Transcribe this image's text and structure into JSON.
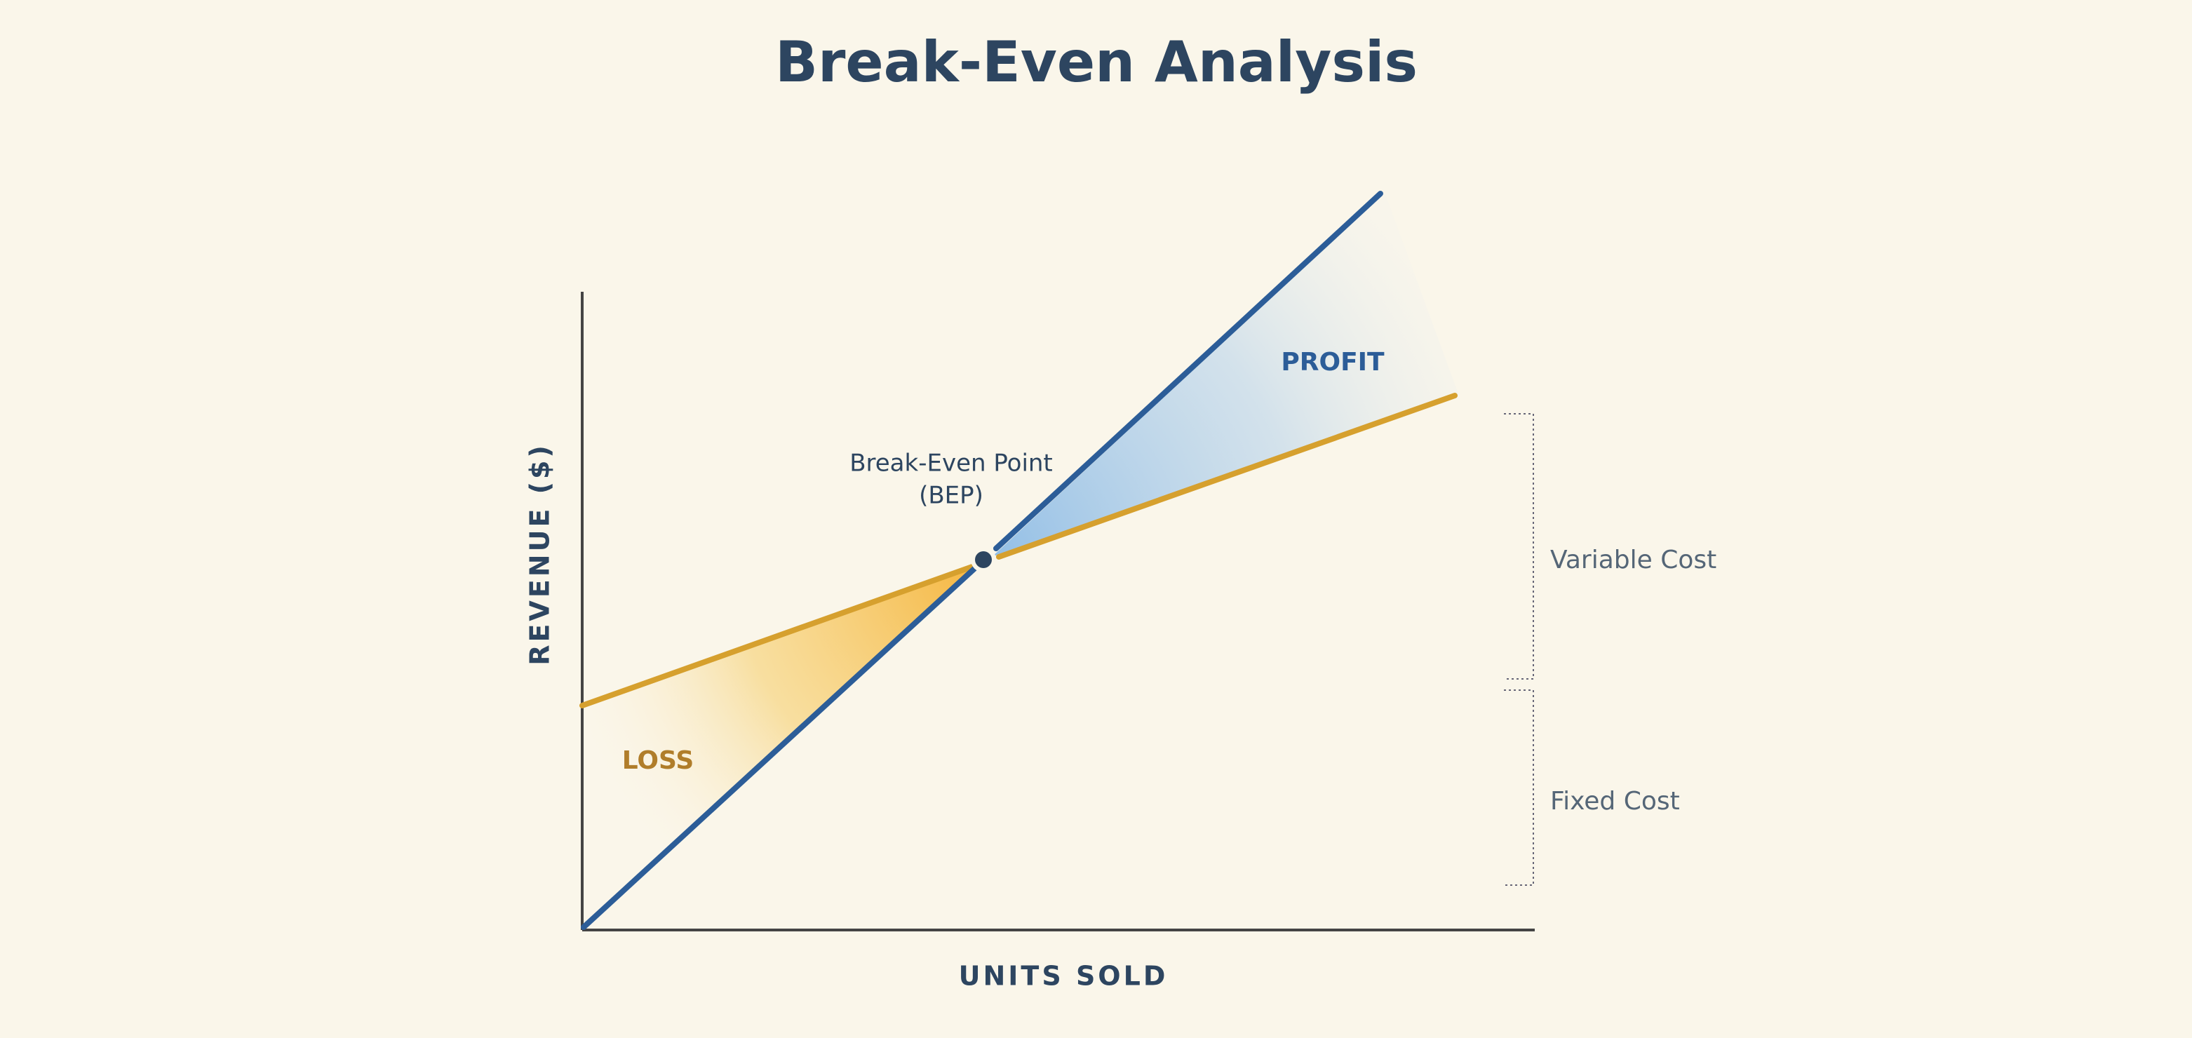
{
  "header": {
    "title": "Break-Even Analysis"
  },
  "axes": {
    "y_label": "REVENUE ($)",
    "x_label": "UNITS SOLD"
  },
  "regions": {
    "profit": "PROFIT",
    "loss": "LOSS"
  },
  "point": {
    "label_line1": "Break-Even Point",
    "label_line2": "(BEP)"
  },
  "brackets": {
    "variable": "Variable Cost",
    "fixed": "Fixed Cost"
  }
}
